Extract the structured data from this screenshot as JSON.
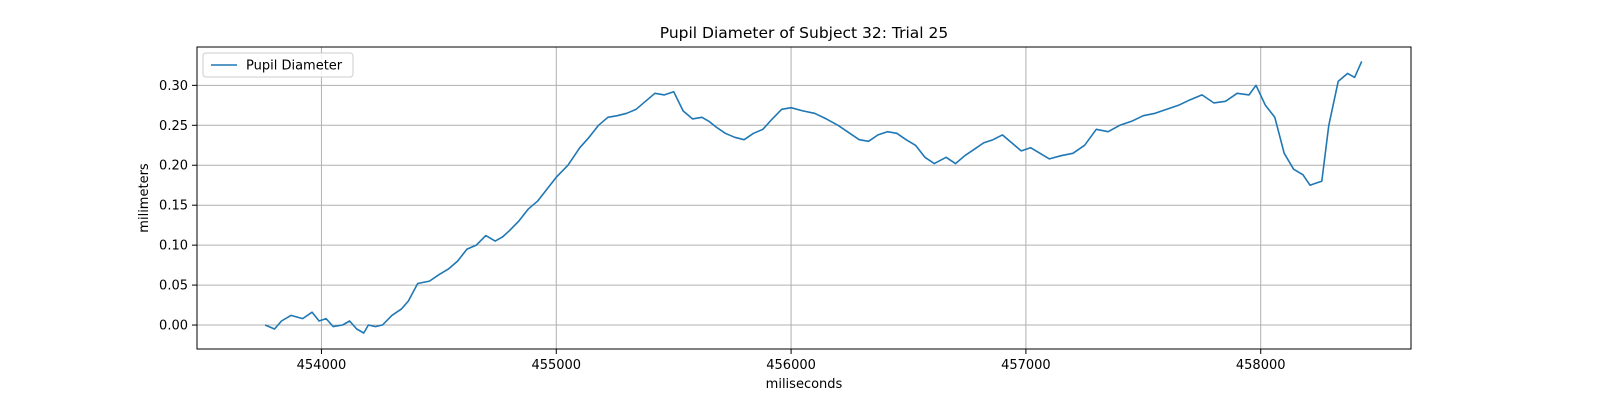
{
  "chart_data": {
    "type": "line",
    "title": "Pupil Diameter of Subject 32: Trial 25",
    "xlabel": "miliseconds",
    "ylabel": "milimeters",
    "xlim": [
      453470,
      458640
    ],
    "ylim": [
      -0.03,
      0.348
    ],
    "xticks": [
      454000,
      455000,
      456000,
      457000,
      458000
    ],
    "yticks": [
      "0.00",
      "0.05",
      "0.10",
      "0.15",
      "0.20",
      "0.25",
      "0.30"
    ],
    "grid": true,
    "legend": {
      "placement": "top-left",
      "entries": [
        "Pupil Diameter"
      ]
    },
    "series": [
      {
        "name": "Pupil Diameter",
        "color": "#1f77b4",
        "x": [
          453760,
          453800,
          453830,
          453870,
          453920,
          453960,
          453990,
          454020,
          454050,
          454090,
          454120,
          454150,
          454180,
          454200,
          454230,
          454260,
          454300,
          454340,
          454370,
          454410,
          454460,
          454500,
          454540,
          454580,
          454620,
          454660,
          454700,
          454740,
          454770,
          454800,
          454840,
          454880,
          454920,
          454960,
          455000,
          455050,
          455100,
          455140,
          455180,
          455220,
          455260,
          455300,
          455340,
          455380,
          455420,
          455460,
          455500,
          455540,
          455580,
          455620,
          455650,
          455680,
          455720,
          455760,
          455800,
          455840,
          455880,
          455920,
          455960,
          456000,
          456050,
          456100,
          456150,
          456200,
          456250,
          456290,
          456330,
          456370,
          456410,
          456450,
          456490,
          456530,
          456570,
          456610,
          456660,
          456700,
          456740,
          456780,
          456820,
          456860,
          456900,
          456940,
          456980,
          457020,
          457060,
          457100,
          457150,
          457200,
          457250,
          457300,
          457350,
          457400,
          457450,
          457500,
          457550,
          457600,
          457650,
          457700,
          457750,
          457800,
          457850,
          457900,
          457950,
          457980,
          458020,
          458060,
          458100,
          458140,
          458180,
          458210,
          458240,
          458260,
          458290,
          458330,
          458370,
          458400,
          458430
        ],
        "y": [
          0.0,
          -0.005,
          0.005,
          0.012,
          0.008,
          0.016,
          0.005,
          0.008,
          -0.002,
          0.0,
          0.005,
          -0.005,
          -0.01,
          0.0,
          -0.002,
          0.0,
          0.012,
          0.02,
          0.03,
          0.052,
          0.055,
          0.063,
          0.07,
          0.08,
          0.095,
          0.1,
          0.112,
          0.105,
          0.11,
          0.118,
          0.13,
          0.145,
          0.155,
          0.17,
          0.185,
          0.2,
          0.222,
          0.235,
          0.25,
          0.26,
          0.262,
          0.265,
          0.27,
          0.28,
          0.29,
          0.288,
          0.292,
          0.268,
          0.258,
          0.26,
          0.255,
          0.248,
          0.24,
          0.235,
          0.232,
          0.24,
          0.245,
          0.258,
          0.27,
          0.272,
          0.268,
          0.265,
          0.258,
          0.25,
          0.24,
          0.232,
          0.23,
          0.238,
          0.242,
          0.24,
          0.232,
          0.225,
          0.21,
          0.202,
          0.21,
          0.202,
          0.212,
          0.22,
          0.228,
          0.232,
          0.238,
          0.228,
          0.218,
          0.222,
          0.215,
          0.208,
          0.212,
          0.215,
          0.225,
          0.245,
          0.242,
          0.25,
          0.255,
          0.262,
          0.265,
          0.27,
          0.275,
          0.282,
          0.288,
          0.278,
          0.28,
          0.29,
          0.288,
          0.3,
          0.275,
          0.26,
          0.215,
          0.195,
          0.188,
          0.175,
          0.178,
          0.18,
          0.25,
          0.305,
          0.315,
          0.31,
          0.33
        ]
      }
    ]
  }
}
